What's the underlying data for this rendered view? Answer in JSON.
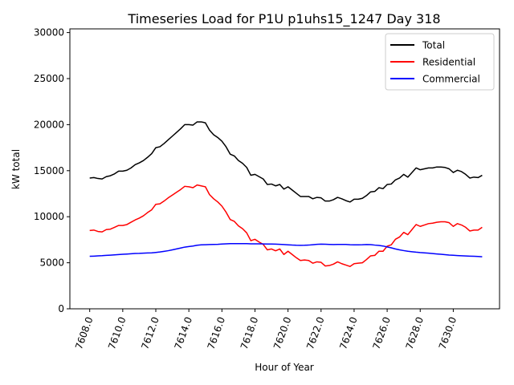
{
  "chart_data": {
    "type": "line",
    "title": "Timeseries Load for P1U p1uhs15_1247  Day 318",
    "xlabel": "Hour of Year",
    "ylabel": "kW total",
    "xlim": [
      7606.8,
      7632.8
    ],
    "ylim": [
      0,
      30400
    ],
    "x_ticks": [
      7608,
      7610,
      7612,
      7614,
      7616,
      7618,
      7620,
      7622,
      7624,
      7626,
      7628,
      7630
    ],
    "x_tick_labels": [
      "7608.0",
      "7610.0",
      "7612.0",
      "7614.0",
      "7616.0",
      "7618.0",
      "7620.0",
      "7622.0",
      "7624.0",
      "7626.0",
      "7628.0",
      "7630.0"
    ],
    "y_ticks": [
      0,
      5000,
      10000,
      15000,
      20000,
      25000,
      30000
    ],
    "y_tick_labels": [
      "0",
      "5000",
      "10000",
      "15000",
      "20000",
      "25000",
      "30000"
    ],
    "grid": false,
    "legend_position": "top-right",
    "x": [
      7608.0,
      7608.25,
      7608.5,
      7608.75,
      7609.0,
      7609.25,
      7609.5,
      7609.75,
      7610.0,
      7610.25,
      7610.5,
      7610.75,
      7611.0,
      7611.25,
      7611.5,
      7611.75,
      7612.0,
      7612.25,
      7612.5,
      7612.75,
      7613.0,
      7613.25,
      7613.5,
      7613.75,
      7614.0,
      7614.25,
      7614.5,
      7614.75,
      7615.0,
      7615.25,
      7615.5,
      7615.75,
      7616.0,
      7616.25,
      7616.5,
      7616.75,
      7617.0,
      7617.25,
      7617.5,
      7617.75,
      7618.0,
      7618.25,
      7618.5,
      7618.75,
      7619.0,
      7619.25,
      7619.5,
      7619.75,
      7620.0,
      7620.25,
      7620.5,
      7620.75,
      7621.0,
      7621.25,
      7621.5,
      7621.75,
      7622.0,
      7622.25,
      7622.5,
      7622.75,
      7623.0,
      7623.25,
      7623.5,
      7623.75,
      7624.0,
      7624.25,
      7624.5,
      7624.75,
      7625.0,
      7625.25,
      7625.5,
      7625.75,
      7626.0,
      7626.25,
      7626.5,
      7626.75,
      7627.0,
      7627.25,
      7627.5,
      7627.75,
      7628.0,
      7628.25,
      7628.5,
      7628.75,
      7629.0,
      7629.25,
      7629.5,
      7629.75,
      7630.0,
      7630.25,
      7630.5,
      7630.75,
      7631.0,
      7631.25,
      7631.5,
      7631.75
    ],
    "series": [
      {
        "name": "Total",
        "color": "#000000",
        "values": [
          14200,
          14250,
          14150,
          14100,
          14350,
          14450,
          14650,
          14950,
          14950,
          15050,
          15300,
          15650,
          15850,
          16100,
          16450,
          16850,
          17500,
          17600,
          17950,
          18350,
          18750,
          19150,
          19550,
          20000,
          20000,
          19950,
          20300,
          20300,
          20200,
          19400,
          18900,
          18600,
          18200,
          17600,
          16800,
          16600,
          16100,
          15800,
          15350,
          14500,
          14600,
          14350,
          14100,
          13500,
          13550,
          13350,
          13500,
          13000,
          13250,
          12900,
          12550,
          12200,
          12200,
          12200,
          11950,
          12100,
          12050,
          11700,
          11700,
          11850,
          12100,
          11950,
          11750,
          11600,
          11900,
          11900,
          12000,
          12300,
          12700,
          12750,
          13150,
          13050,
          13500,
          13550,
          14000,
          14200,
          14600,
          14300,
          14800,
          15300,
          15100,
          15200,
          15300,
          15300,
          15400,
          15400,
          15350,
          15200,
          14800,
          15050,
          14900,
          14600,
          14200,
          14300,
          14250,
          14500
        ]
      },
      {
        "name": "Residential",
        "color": "#ff0000",
        "values": [
          8500,
          8550,
          8400,
          8350,
          8600,
          8650,
          8850,
          9050,
          9050,
          9150,
          9400,
          9650,
          9850,
          10100,
          10450,
          10750,
          11350,
          11400,
          11700,
          12050,
          12350,
          12650,
          12950,
          13300,
          13250,
          13150,
          13450,
          13350,
          13250,
          12400,
          11950,
          11600,
          11150,
          10500,
          9700,
          9500,
          9000,
          8700,
          8250,
          7400,
          7550,
          7250,
          7000,
          6400,
          6500,
          6300,
          6500,
          5900,
          6250,
          5900,
          5550,
          5250,
          5300,
          5250,
          4950,
          5100,
          5050,
          4650,
          4700,
          4850,
          5100,
          4900,
          4750,
          4600,
          4900,
          4950,
          5000,
          5350,
          5750,
          5800,
          6250,
          6250,
          6800,
          6950,
          7550,
          7800,
          8300,
          8050,
          8600,
          9150,
          8950,
          9100,
          9250,
          9300,
          9400,
          9450,
          9450,
          9350,
          8950,
          9250,
          9100,
          8850,
          8450,
          8550,
          8550,
          8850
        ]
      },
      {
        "name": "Commercial",
        "color": "#0000ff",
        "values": [
          5700,
          5720,
          5750,
          5770,
          5800,
          5830,
          5860,
          5890,
          5920,
          5950,
          5980,
          6010,
          6020,
          6040,
          6060,
          6080,
          6120,
          6170,
          6240,
          6310,
          6400,
          6500,
          6600,
          6700,
          6760,
          6820,
          6900,
          6950,
          6960,
          6980,
          6990,
          7000,
          7030,
          7060,
          7080,
          7080,
          7080,
          7080,
          7080,
          7060,
          7050,
          7050,
          7040,
          7030,
          7030,
          7020,
          7000,
          6980,
          6950,
          6920,
          6900,
          6890,
          6900,
          6920,
          6960,
          7000,
          7020,
          7010,
          6990,
          6980,
          6990,
          6990,
          6990,
          6960,
          6950,
          6950,
          6960,
          6980,
          6970,
          6920,
          6880,
          6820,
          6720,
          6620,
          6500,
          6400,
          6320,
          6250,
          6200,
          6150,
          6110,
          6080,
          6040,
          6000,
          5960,
          5920,
          5880,
          5840,
          5810,
          5780,
          5760,
          5740,
          5720,
          5700,
          5680,
          5650
        ]
      }
    ]
  }
}
